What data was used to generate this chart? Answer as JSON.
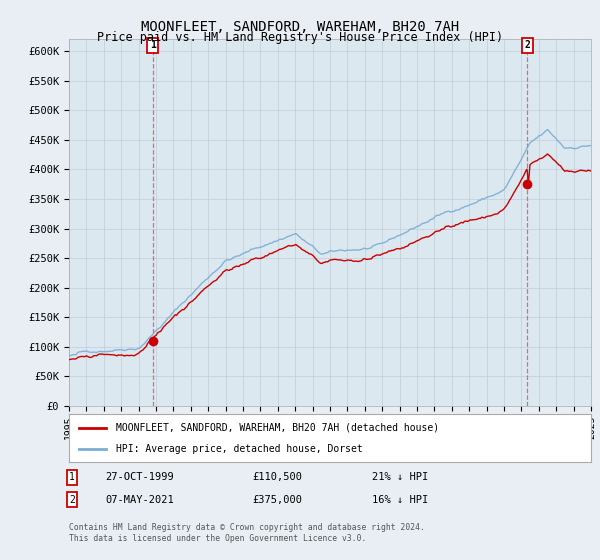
{
  "title": "MOONFLEET, SANDFORD, WAREHAM, BH20 7AH",
  "subtitle": "Price paid vs. HM Land Registry's House Price Index (HPI)",
  "ylabel_ticks": [
    "£0",
    "£50K",
    "£100K",
    "£150K",
    "£200K",
    "£250K",
    "£300K",
    "£350K",
    "£400K",
    "£450K",
    "£500K",
    "£550K",
    "£600K"
  ],
  "ylim": [
    0,
    620000
  ],
  "ytick_vals": [
    0,
    50000,
    100000,
    150000,
    200000,
    250000,
    300000,
    350000,
    400000,
    450000,
    500000,
    550000,
    600000
  ],
  "hpi_color": "#7aadd4",
  "price_color": "#cc0000",
  "marker1_year": 1999.82,
  "marker1_price": 110500,
  "marker2_year": 2021.35,
  "marker2_price": 375000,
  "legend_line1": "MOONFLEET, SANDFORD, WAREHAM, BH20 7AH (detached house)",
  "legend_line2": "HPI: Average price, detached house, Dorset",
  "footnote": "Contains HM Land Registry data © Crown copyright and database right 2024.\nThis data is licensed under the Open Government Licence v3.0.",
  "background_color": "#e8eef4",
  "plot_bg_color": "#dce8f0",
  "marker_box_color": "#cc0000",
  "vline_color": "#e06060",
  "annotation_date1": "27-OCT-1999",
  "annotation_price1": "£110,500",
  "annotation_pct1": "21% ↓ HPI",
  "annotation_date2": "07-MAY-2021",
  "annotation_price2": "£375,000",
  "annotation_pct2": "16% ↓ HPI"
}
